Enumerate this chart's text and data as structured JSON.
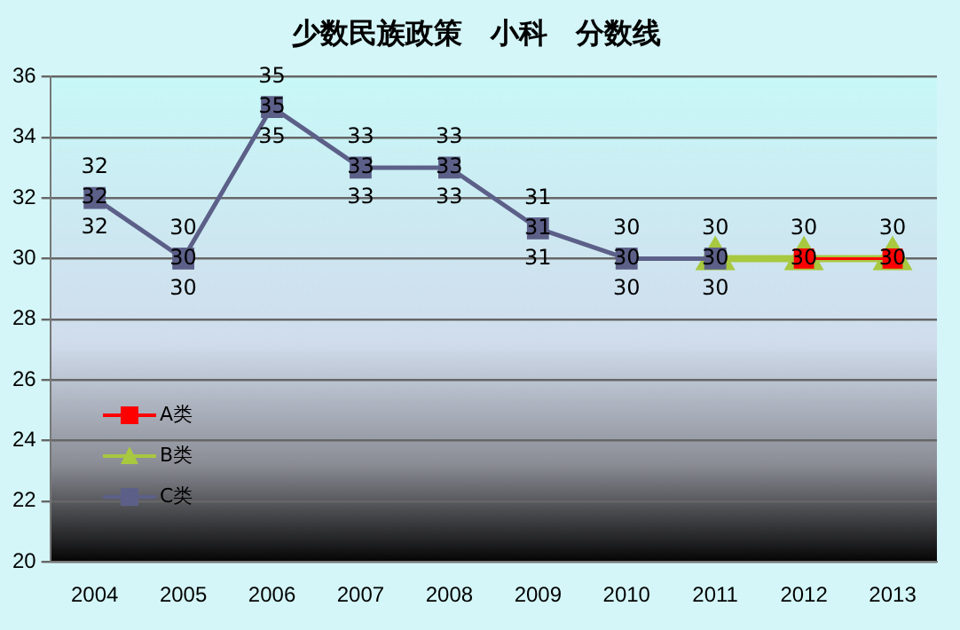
{
  "chart_data": {
    "type": "line",
    "title": "少数民族政策　小科　分数线",
    "categories": [
      "2004",
      "2005",
      "2006",
      "2007",
      "2008",
      "2009",
      "2010",
      "2011",
      "2012",
      "2013"
    ],
    "series": [
      {
        "name": "A类",
        "color": "#ff0000",
        "marker": "square",
        "values": [
          null,
          null,
          null,
          null,
          null,
          null,
          null,
          null,
          30,
          30
        ],
        "value_labels": [
          null,
          null,
          null,
          null,
          null,
          null,
          null,
          null,
          "30",
          "30"
        ]
      },
      {
        "name": "B类",
        "color": "#a8c840",
        "marker": "triangle",
        "values": [
          null,
          null,
          null,
          null,
          null,
          null,
          null,
          30,
          30,
          30
        ],
        "value_labels": [
          null,
          null,
          null,
          null,
          null,
          null,
          null,
          "30",
          "30",
          "30"
        ]
      },
      {
        "name": "C类",
        "color": "#5c6088",
        "marker": "square",
        "values": [
          32,
          30,
          35,
          33,
          33,
          31,
          30,
          30,
          null,
          null
        ],
        "value_labels": [
          "32",
          "30",
          "35",
          "33",
          "33",
          "31",
          "30",
          "30",
          null,
          null
        ]
      }
    ],
    "annotations": [
      {
        "text": "32",
        "x": "2004",
        "y": 32
      },
      {
        "text": "30",
        "x": "2005",
        "y": 30
      },
      {
        "text": "35",
        "x": "2006",
        "y": 35
      },
      {
        "text": "33",
        "x": "2007",
        "y": 33
      },
      {
        "text": "33",
        "x": "2008",
        "y": 33
      },
      {
        "text": "31",
        "x": "2009",
        "y": 31
      },
      {
        "text": "30",
        "x": "2010",
        "y": 30
      },
      {
        "text": "32",
        "x": "2004",
        "y": 32
      },
      {
        "text": "30",
        "x": "2005",
        "y": 30
      },
      {
        "text": "35",
        "x": "2006",
        "y": 35
      },
      {
        "text": "33",
        "x": "2007",
        "y": 33
      },
      {
        "text": "33",
        "x": "2008",
        "y": 33
      },
      {
        "text": "31",
        "x": "2009",
        "y": 31
      },
      {
        "text": "30",
        "x": "2010",
        "y": 30
      },
      {
        "text": "30",
        "x": "2011",
        "y": 30
      }
    ],
    "ylim": [
      20,
      36
    ],
    "yticks": [
      20,
      22,
      24,
      26,
      28,
      30,
      32,
      34,
      36
    ],
    "grid": "y",
    "legend": "bottom left",
    "line_style": "solid"
  }
}
